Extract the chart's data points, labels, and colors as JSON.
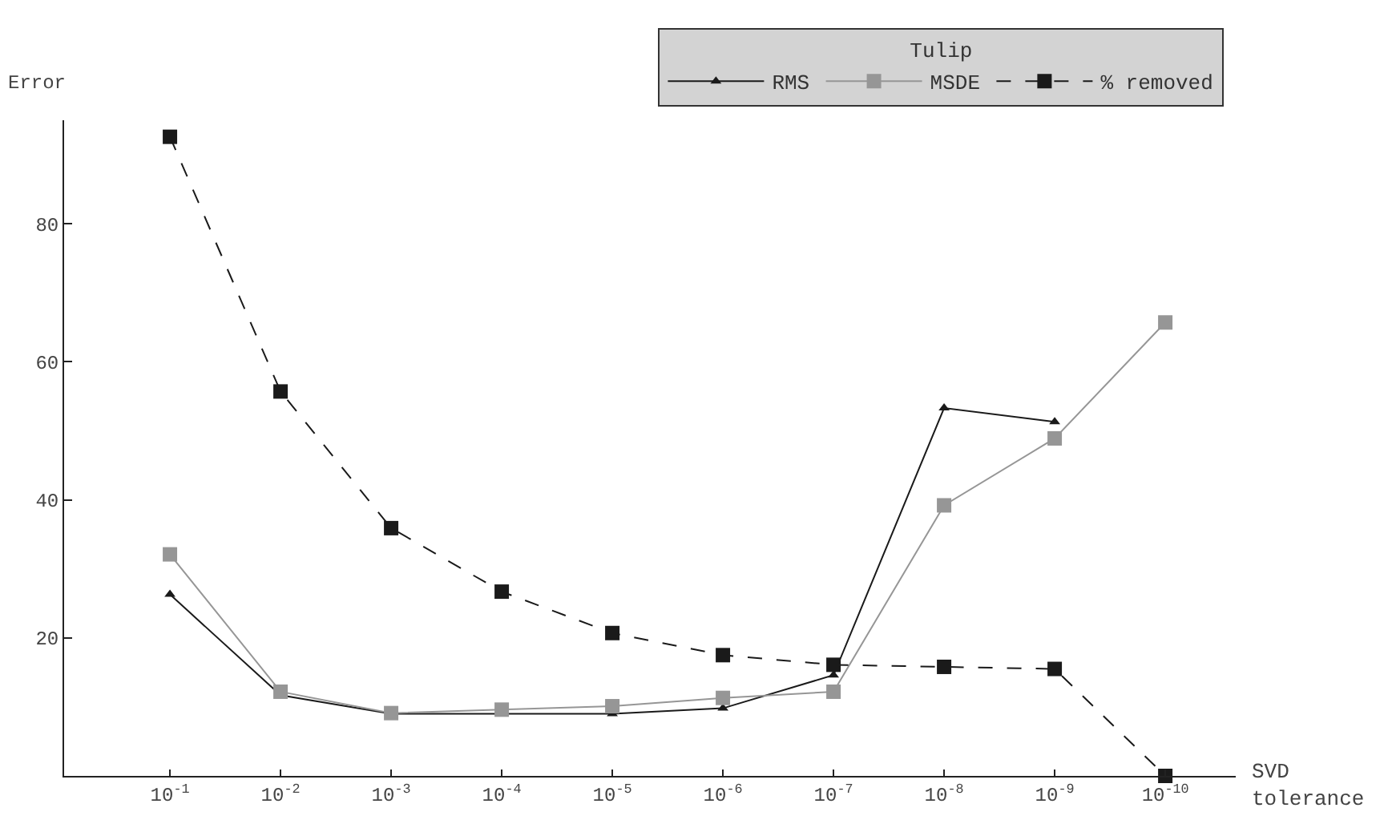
{
  "chart_data": {
    "type": "line",
    "ylabel": "Error",
    "xlabel": "SVD\ntolerance",
    "categories": [
      "10$^{-1}$",
      "10$^{-2}$",
      "10$^{-3}$",
      "10$^{-4}$",
      "10$^{-5}$",
      "10$^{-6}$",
      "10$^{-7}$",
      "10$^{-8}$",
      "10$^{-9}$",
      "10$^{-10}$"
    ],
    "series": [
      {
        "name": "RMS",
        "color": "#1a1a1a",
        "marker": "triangle",
        "line_style": "solid",
        "values": [
          26.3,
          11.7,
          9.0,
          9.0,
          9.0,
          9.8,
          14.6,
          53.3,
          51.3,
          null
        ]
      },
      {
        "name": "MSDE",
        "color": "#969696",
        "marker": "square",
        "line_style": "solid",
        "values": [
          32.1,
          12.2,
          9.1,
          9.6,
          10.1,
          11.3,
          12.2,
          39.2,
          48.9,
          65.7
        ]
      },
      {
        "name": "% removed",
        "color": "#1a1a1a",
        "marker": "square",
        "line_style": "dashed",
        "values": [
          92.6,
          55.7,
          35.9,
          26.7,
          20.7,
          17.5,
          16.1,
          15.8,
          15.5,
          0
        ]
      }
    ],
    "legend_title": "Tulip",
    "legend": "top right",
    "ylim": [
      0,
      95
    ],
    "yticks": [
      20,
      40,
      60,
      80
    ]
  }
}
